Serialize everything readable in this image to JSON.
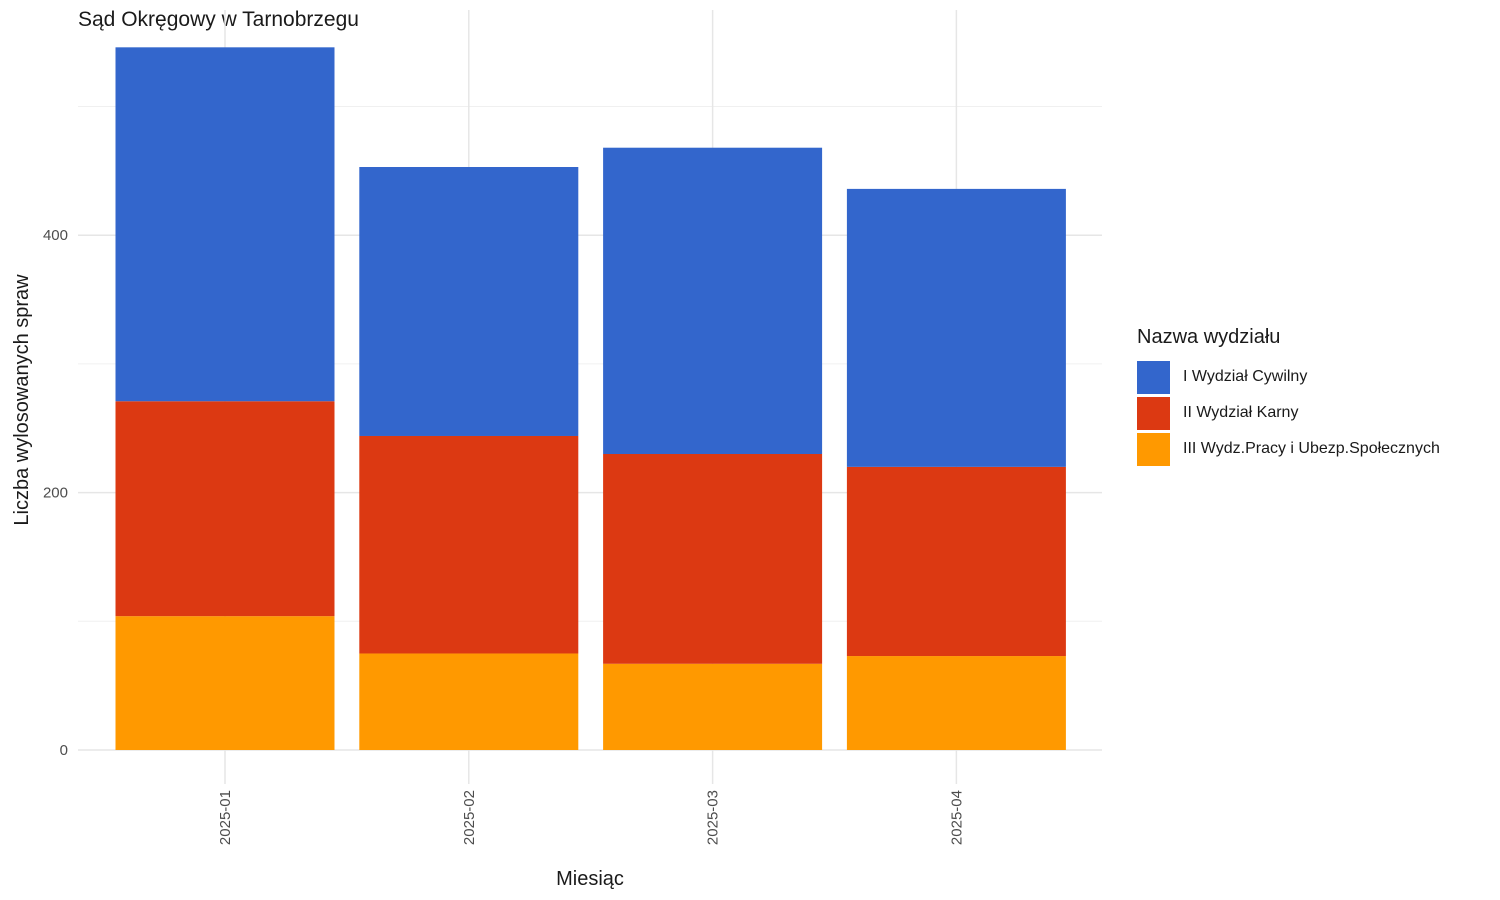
{
  "chart_data": {
    "type": "bar",
    "stacked": true,
    "title": "Sąd Okręgowy w Tarnobrzegu",
    "xlabel": "Miesiąc",
    "ylabel": "Liczba wylosowanych spraw",
    "categories": [
      "2025-01",
      "2025-02",
      "2025-03",
      "2025-04"
    ],
    "ylim": [
      0,
      575
    ],
    "yticks": [
      0,
      200,
      400
    ],
    "grid": true,
    "legend": {
      "title": "Nazwa wydziału",
      "position": "right"
    },
    "series": [
      {
        "name": "III Wydz.Pracy i Ubezp.Społecznych",
        "color": "#FF9900",
        "values": [
          104,
          75,
          67,
          73
        ]
      },
      {
        "name": "II Wydział Karny",
        "color": "#DC3912",
        "values": [
          167,
          169,
          163,
          147
        ]
      },
      {
        "name": "I Wydział Cywilny",
        "color": "#3366CC",
        "values": [
          275,
          209,
          238,
          216
        ]
      }
    ]
  }
}
